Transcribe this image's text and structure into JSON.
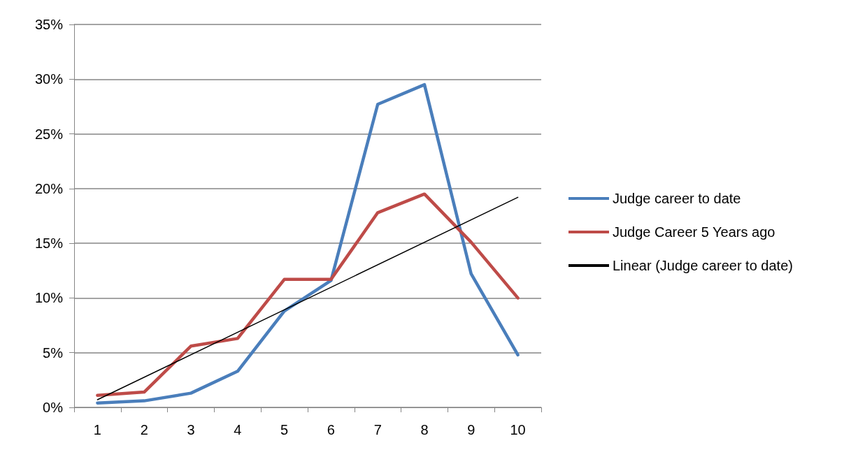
{
  "chart_data": {
    "type": "line",
    "categories": [
      "1",
      "2",
      "3",
      "4",
      "5",
      "6",
      "7",
      "8",
      "9",
      "10"
    ],
    "series": [
      {
        "name": "Judge career to date",
        "color": "#4a7ebb",
        "values": [
          0.4,
          0.6,
          1.3,
          3.3,
          8.8,
          11.6,
          27.7,
          29.5,
          12.2,
          4.8
        ]
      },
      {
        "name": "Judge Career 5 Years ago",
        "color": "#be4b48",
        "values": [
          1.1,
          1.4,
          5.6,
          6.3,
          11.7,
          11.7,
          17.8,
          19.5,
          15.1,
          10.0
        ]
      },
      {
        "name": "Linear (Judge career to date)",
        "color": "#000000",
        "x": [
          "1",
          "10"
        ],
        "values": [
          0.7,
          19.2
        ]
      }
    ],
    "ylim": [
      0,
      35
    ],
    "yticks": [
      {
        "value": 0,
        "label": "0%"
      },
      {
        "value": 5,
        "label": "5%"
      },
      {
        "value": 10,
        "label": "10%"
      },
      {
        "value": 15,
        "label": "15%"
      },
      {
        "value": 20,
        "label": "20%"
      },
      {
        "value": 25,
        "label": "25%"
      },
      {
        "value": 30,
        "label": "30%"
      },
      {
        "value": 35,
        "label": "35%"
      }
    ],
    "grid": "y",
    "legend": "right",
    "marker": "none",
    "line_style": "solid"
  }
}
